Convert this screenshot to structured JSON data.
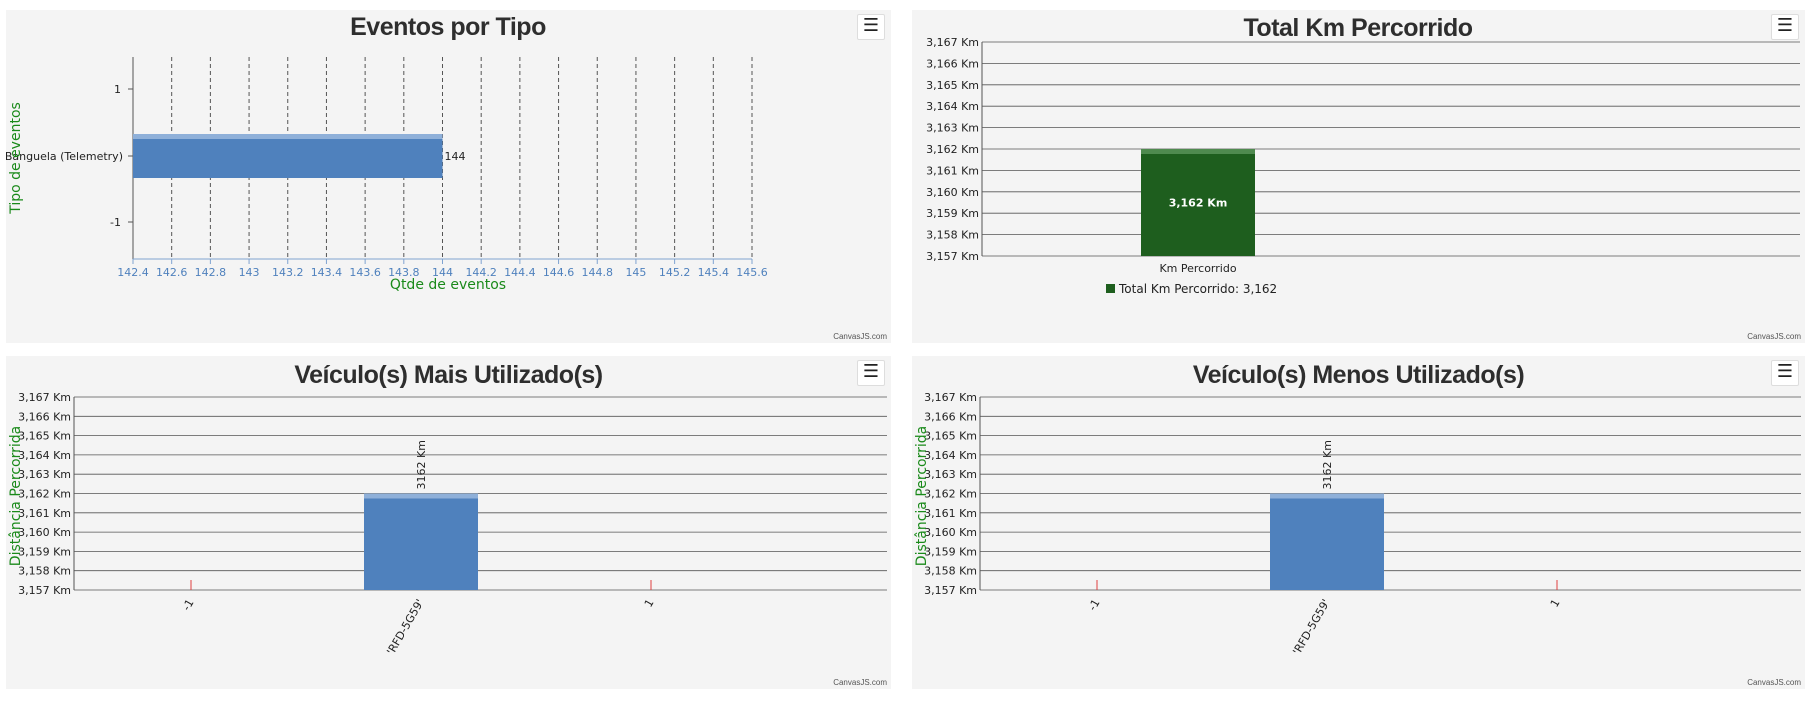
{
  "chart_data": [
    {
      "type": "bar",
      "orientation": "horizontal",
      "title": "Eventos por Tipo",
      "xlabel": "Qtde de eventos",
      "ylabel": "Tipo de eventos",
      "categories": [
        "Banguela (Telemetry)"
      ],
      "values": [
        144
      ],
      "data_labels": [
        "144"
      ],
      "xlim": [
        142.4,
        145.6
      ],
      "x_ticks": [
        "142.4",
        "142.6",
        "142.8",
        "143",
        "143.2",
        "143.4",
        "143.6",
        "143.8",
        "144",
        "144.2",
        "144.4",
        "144.6",
        "144.8",
        "145",
        "145.2",
        "145.4",
        "145.6"
      ],
      "y_ticks": [
        "1",
        "-1"
      ],
      "grid": "vertical dashed",
      "color": "#4f81bd",
      "credit": "CanvasJS.com",
      "menu_icon": "hamburger-icon"
    },
    {
      "type": "bar",
      "title": "Total Km Percorrido",
      "categories": [
        "Km Percorrido"
      ],
      "values": [
        3162
      ],
      "data_labels": [
        "3,162 Km"
      ],
      "ylim": [
        3157,
        3167
      ],
      "y_ticks": [
        "3,157 Km",
        "3,158 Km",
        "3,159 Km",
        "3,160 Km",
        "3,161 Km",
        "3,162 Km",
        "3,163 Km",
        "3,164 Km",
        "3,165 Km",
        "3,166 Km",
        "3,167 Km"
      ],
      "legend": [
        {
          "name": "Total Km Percorrido: 3,162",
          "color": "#1e5e1e"
        }
      ],
      "legend_position": "bottom",
      "grid": "horizontal",
      "color": "#1e5e1e",
      "credit": "CanvasJS.com",
      "menu_icon": "hamburger-icon"
    },
    {
      "type": "bar",
      "title": "Veículo(s) Mais Utilizado(s)",
      "ylabel": "Distância Percorrida",
      "categories": [
        "-1",
        "'RFD-5G59'",
        "1"
      ],
      "values": [
        null,
        3162,
        null
      ],
      "data_labels": [
        "3162 Km"
      ],
      "ylim": [
        3157,
        3167
      ],
      "y_ticks": [
        "3,157 Km",
        "3,158 Km",
        "3,159 Km",
        "3,160 Km",
        "3,161 Km",
        "3,162 Km",
        "3,163 Km",
        "3,164 Km",
        "3,165 Km",
        "3,166 Km",
        "3,167 Km"
      ],
      "grid": "horizontal",
      "color": "#4f81bd",
      "tick_color": "#e04040",
      "credit": "CanvasJS.com",
      "menu_icon": "hamburger-icon"
    },
    {
      "type": "bar",
      "title": "Veículo(s) Menos Utilizado(s)",
      "ylabel": "Distância Percorrida",
      "categories": [
        "-1",
        "'RFD-5G59'",
        "1"
      ],
      "values": [
        null,
        3162,
        null
      ],
      "data_labels": [
        "3162 Km"
      ],
      "ylim": [
        3157,
        3167
      ],
      "y_ticks": [
        "3,157 Km",
        "3,158 Km",
        "3,159 Km",
        "3,160 Km",
        "3,161 Km",
        "3,162 Km",
        "3,163 Km",
        "3,164 Km",
        "3,165 Km",
        "3,166 Km",
        "3,167 Km"
      ],
      "grid": "horizontal",
      "color": "#4f81bd",
      "tick_color": "#e04040",
      "credit": "CanvasJS.com",
      "menu_icon": "hamburger-icon"
    }
  ],
  "menu_glyph": "☰"
}
